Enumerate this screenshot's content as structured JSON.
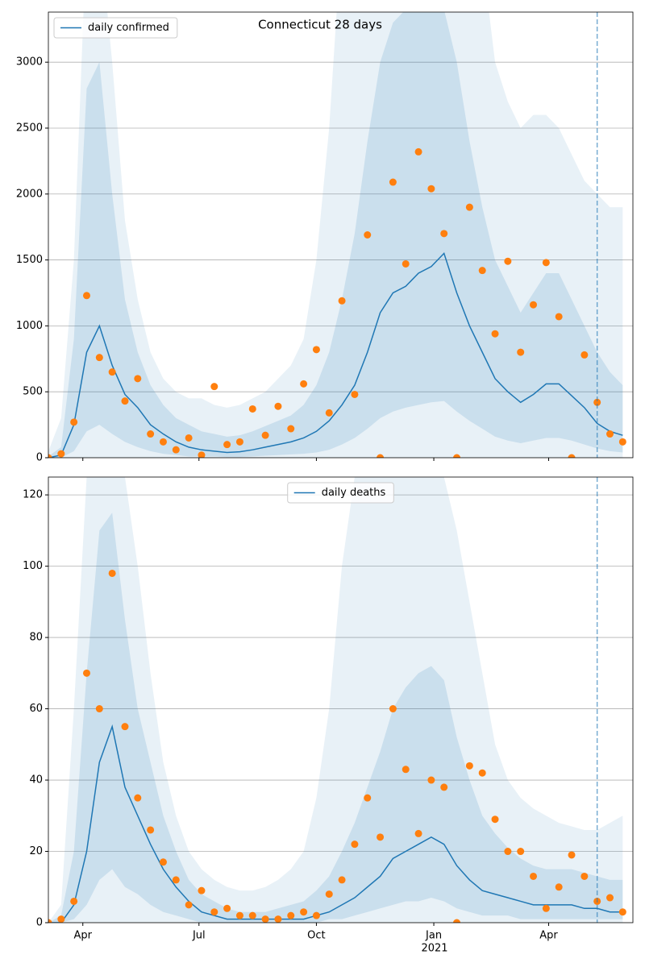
{
  "chart_data": [
    {
      "type": "line",
      "title": "Connecticut 28 days",
      "x": [
        0,
        10,
        20,
        30,
        40,
        50,
        60,
        70,
        80,
        90,
        100,
        110,
        120,
        130,
        140,
        150,
        160,
        170,
        180,
        190,
        200,
        210,
        220,
        230,
        240,
        250,
        260,
        270,
        280,
        290,
        300,
        310,
        320,
        330,
        340,
        350,
        360,
        370,
        380,
        390,
        400,
        410,
        420,
        430,
        440,
        450
      ],
      "xlim": [
        0,
        458
      ],
      "xticks": [
        27,
        118,
        210,
        302,
        392
      ],
      "ylim": [
        0,
        3380
      ],
      "yticks": [
        0,
        500,
        1000,
        1500,
        2000,
        2500,
        3000
      ],
      "grid": true,
      "legend": "upper left",
      "vline": 430,
      "bands": [
        {
          "color": "rgba(31,119,180,0.1)",
          "lower": [
            0,
            0,
            0,
            0,
            0,
            0,
            0,
            0,
            0,
            0,
            0,
            0,
            0,
            0,
            0,
            0,
            0,
            0,
            0,
            0,
            0,
            0,
            0,
            0,
            0,
            0,
            0,
            0,
            0,
            0,
            0,
            0,
            0,
            0,
            0,
            0,
            0,
            0,
            0,
            0,
            0,
            0,
            0,
            0,
            0,
            0
          ],
          "upper": [
            50,
            300,
            1500,
            4000,
            4000,
            3000,
            1800,
            1200,
            800,
            600,
            500,
            450,
            450,
            400,
            380,
            400,
            450,
            500,
            600,
            700,
            900,
            1500,
            2500,
            4000,
            4000,
            4000,
            4000,
            4000,
            4000,
            4000,
            4000,
            4000,
            4000,
            4000,
            3800,
            3000,
            2700,
            2500,
            2600,
            2600,
            2500,
            2300,
            2100,
            2000,
            1900,
            1900
          ]
        },
        {
          "color": "rgba(31,119,180,0.15)",
          "lower": [
            0,
            0,
            50,
            200,
            250,
            180,
            120,
            80,
            50,
            30,
            20,
            10,
            10,
            10,
            5,
            5,
            10,
            15,
            20,
            25,
            30,
            40,
            60,
            100,
            150,
            220,
            300,
            350,
            380,
            400,
            420,
            430,
            350,
            280,
            220,
            160,
            130,
            110,
            130,
            150,
            150,
            130,
            100,
            70,
            50,
            40
          ],
          "upper": [
            10,
            80,
            900,
            2800,
            3000,
            2000,
            1200,
            800,
            550,
            400,
            300,
            250,
            200,
            180,
            160,
            170,
            200,
            240,
            280,
            320,
            400,
            550,
            800,
            1200,
            1700,
            2400,
            3000,
            3300,
            3400,
            3400,
            3400,
            3400,
            3000,
            2400,
            1900,
            1500,
            1300,
            1100,
            1250,
            1400,
            1400,
            1200,
            1000,
            800,
            650,
            550
          ]
        }
      ],
      "series": [
        {
          "name": "daily confirmed",
          "color": "#1f77b4",
          "values": [
            0,
            20,
            250,
            800,
            1000,
            700,
            480,
            380,
            250,
            180,
            120,
            80,
            60,
            50,
            40,
            45,
            60,
            80,
            100,
            120,
            150,
            200,
            280,
            400,
            550,
            800,
            1100,
            1250,
            1300,
            1400,
            1450,
            1550,
            1250,
            1000,
            800,
            600,
            500,
            420,
            480,
            560,
            560,
            470,
            380,
            260,
            200,
            170
          ]
        }
      ],
      "points": {
        "color": "#ff7f0e",
        "values": [
          0,
          30,
          270,
          1230,
          760,
          650,
          430,
          600,
          180,
          120,
          60,
          150,
          20,
          540,
          100,
          120,
          370,
          170,
          390,
          220,
          560,
          820,
          340,
          1190,
          480,
          1690,
          0,
          2090,
          1470,
          2320,
          2040,
          1700,
          0,
          1900,
          1420,
          940,
          1490,
          800,
          1160,
          1480,
          1070,
          0,
          780,
          420,
          180,
          120
        ]
      }
    },
    {
      "type": "line",
      "x": [
        0,
        10,
        20,
        30,
        40,
        50,
        60,
        70,
        80,
        90,
        100,
        110,
        120,
        130,
        140,
        150,
        160,
        170,
        180,
        190,
        200,
        210,
        220,
        230,
        240,
        250,
        260,
        270,
        280,
        290,
        300,
        310,
        320,
        330,
        340,
        350,
        360,
        370,
        380,
        390,
        400,
        410,
        420,
        430,
        440,
        450
      ],
      "xlim": [
        0,
        458
      ],
      "xticks": [
        {
          "value": 27,
          "label": "Apr"
        },
        {
          "value": 118,
          "label": "Jul"
        },
        {
          "value": 210,
          "label": "Oct"
        },
        {
          "value": 302,
          "label": "Jan"
        },
        {
          "value": 392,
          "label": "Apr"
        }
      ],
      "year_label": "2021",
      "ylim": [
        0,
        125
      ],
      "yticks": [
        0,
        20,
        40,
        60,
        80,
        100,
        120
      ],
      "grid": true,
      "legend": "upper center",
      "vline": 430,
      "bands": [
        {
          "color": "rgba(31,119,180,0.1)",
          "lower": [
            0,
            0,
            0,
            0,
            0,
            0,
            0,
            0,
            0,
            0,
            0,
            0,
            0,
            0,
            0,
            0,
            0,
            0,
            0,
            0,
            0,
            0,
            0,
            0,
            0,
            0,
            0,
            0,
            0,
            0,
            0,
            0,
            0,
            0,
            0,
            0,
            0,
            0,
            0,
            0,
            0,
            0,
            0,
            0,
            0,
            0
          ],
          "upper": [
            0,
            5,
            60,
            125,
            125,
            125,
            125,
            100,
            70,
            45,
            30,
            20,
            15,
            12,
            10,
            9,
            9,
            10,
            12,
            15,
            20,
            35,
            60,
            100,
            125,
            125,
            125,
            125,
            125,
            125,
            125,
            125,
            110,
            90,
            70,
            50,
            40,
            35,
            32,
            30,
            28,
            27,
            26,
            26,
            28,
            30
          ]
        },
        {
          "color": "rgba(31,119,180,0.15)",
          "lower": [
            0,
            0,
            1,
            5,
            12,
            15,
            10,
            8,
            5,
            3,
            2,
            1,
            0,
            0,
            0,
            0,
            0,
            0,
            0,
            0,
            0,
            0,
            1,
            1,
            2,
            3,
            4,
            5,
            6,
            6,
            7,
            6,
            4,
            3,
            2,
            2,
            2,
            1,
            1,
            1,
            1,
            1,
            1,
            1,
            1,
            1
          ],
          "upper": [
            0,
            2,
            20,
            70,
            110,
            115,
            85,
            60,
            45,
            30,
            20,
            12,
            8,
            6,
            4,
            3,
            3,
            3,
            4,
            5,
            6,
            9,
            13,
            20,
            28,
            38,
            48,
            60,
            66,
            70,
            72,
            68,
            52,
            40,
            30,
            25,
            21,
            18,
            16,
            15,
            15,
            15,
            14,
            13,
            12,
            12
          ]
        }
      ],
      "series": [
        {
          "name": "daily deaths",
          "color": "#1f77b4",
          "values": [
            0,
            0,
            5,
            20,
            45,
            55,
            38,
            30,
            22,
            15,
            10,
            6,
            3,
            2,
            1,
            1,
            1,
            1,
            1,
            1,
            1,
            2,
            3,
            5,
            7,
            10,
            13,
            18,
            20,
            22,
            24,
            22,
            16,
            12,
            9,
            8,
            7,
            6,
            5,
            5,
            5,
            5,
            4,
            4,
            3,
            3
          ]
        }
      ],
      "points": {
        "color": "#ff7f0e",
        "values": [
          0,
          1,
          6,
          70,
          60,
          98,
          55,
          35,
          26,
          17,
          12,
          5,
          9,
          3,
          4,
          2,
          2,
          1,
          1,
          2,
          3,
          2,
          8,
          12,
          22,
          35,
          24,
          60,
          43,
          25,
          40,
          38,
          0,
          44,
          42,
          29,
          20,
          20,
          13,
          4,
          10,
          19,
          13,
          6,
          7,
          3
        ]
      }
    }
  ]
}
